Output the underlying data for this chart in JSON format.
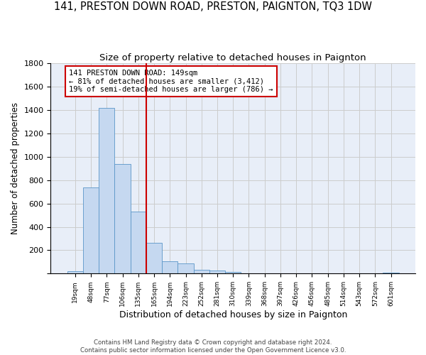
{
  "title": "141, PRESTON DOWN ROAD, PRESTON, PAIGNTON, TQ3 1DW",
  "subtitle": "Size of property relative to detached houses in Paignton",
  "xlabel": "Distribution of detached houses by size in Paignton",
  "ylabel": "Number of detached properties",
  "bin_labels": [
    "19sqm",
    "48sqm",
    "77sqm",
    "106sqm",
    "135sqm",
    "165sqm",
    "194sqm",
    "223sqm",
    "252sqm",
    "281sqm",
    "310sqm",
    "339sqm",
    "368sqm",
    "397sqm",
    "426sqm",
    "456sqm",
    "485sqm",
    "514sqm",
    "543sqm",
    "572sqm",
    "601sqm"
  ],
  "bar_values": [
    20,
    740,
    1420,
    940,
    530,
    265,
    105,
    90,
    35,
    25,
    15,
    5,
    5,
    5,
    5,
    5,
    5,
    5,
    5,
    0,
    10
  ],
  "bar_color": "#c5d8f0",
  "bar_edge_color": "#5a96c8",
  "vline_color": "#cc0000",
  "annotation_text": "141 PRESTON DOWN ROAD: 149sqm\n← 81% of detached houses are smaller (3,412)\n19% of semi-detached houses are larger (786) →",
  "annotation_box_color": "#cc0000",
  "ylim": [
    0,
    1800
  ],
  "yticks": [
    0,
    200,
    400,
    600,
    800,
    1000,
    1200,
    1400,
    1600,
    1800
  ],
  "grid_color": "#cccccc",
  "background_color": "#e8eef8",
  "footer": "Contains HM Land Registry data © Crown copyright and database right 2024.\nContains public sector information licensed under the Open Government Licence v3.0.",
  "title_fontsize": 10.5,
  "subtitle_fontsize": 9.5,
  "ylabel_fontsize": 8.5,
  "xlabel_fontsize": 9
}
